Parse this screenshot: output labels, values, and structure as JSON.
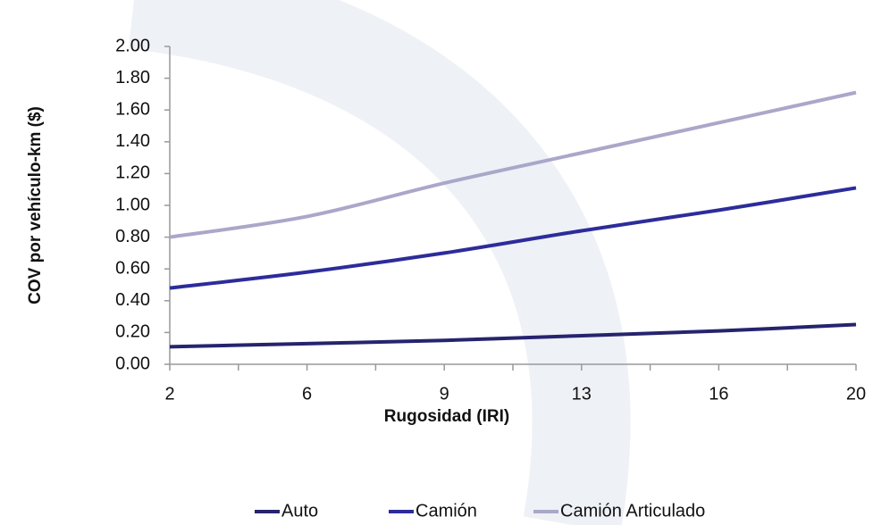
{
  "chart_data": {
    "type": "line",
    "x_label": "Rugosidad (IRI)",
    "y_label": "COV por  vehículo-km ($)",
    "categories": [
      "2",
      "6",
      "9",
      "13",
      "16",
      "20"
    ],
    "series": [
      {
        "name": "Auto",
        "color": "#26246e",
        "values": [
          0.11,
          0.13,
          0.15,
          0.18,
          0.21,
          0.25
        ]
      },
      {
        "name": "Camión",
        "color": "#2d2c9a",
        "values": [
          0.48,
          0.58,
          0.7,
          0.84,
          0.97,
          1.11
        ]
      },
      {
        "name": "Camión Articulado",
        "color": "#aaa7c9",
        "values": [
          0.8,
          0.93,
          1.14,
          1.33,
          1.52,
          1.71
        ]
      }
    ],
    "ylim": [
      0,
      2
    ],
    "yticks": [
      {
        "value": 0,
        "label": "0.00"
      },
      {
        "value": 0.2,
        "label": "0.20"
      },
      {
        "value": 0.4,
        "label": "0.40"
      },
      {
        "value": 0.6,
        "label": "0.60"
      },
      {
        "value": 0.8,
        "label": "0.80"
      },
      {
        "value": 1,
        "label": "1.00"
      },
      {
        "value": 1.2,
        "label": "1.20"
      },
      {
        "value": 1.4,
        "label": "1.40"
      },
      {
        "value": 1.6,
        "label": "1.60"
      },
      {
        "value": 1.8,
        "label": "1.80"
      },
      {
        "value": 2,
        "label": "2.00"
      }
    ],
    "legend": "bottom"
  }
}
